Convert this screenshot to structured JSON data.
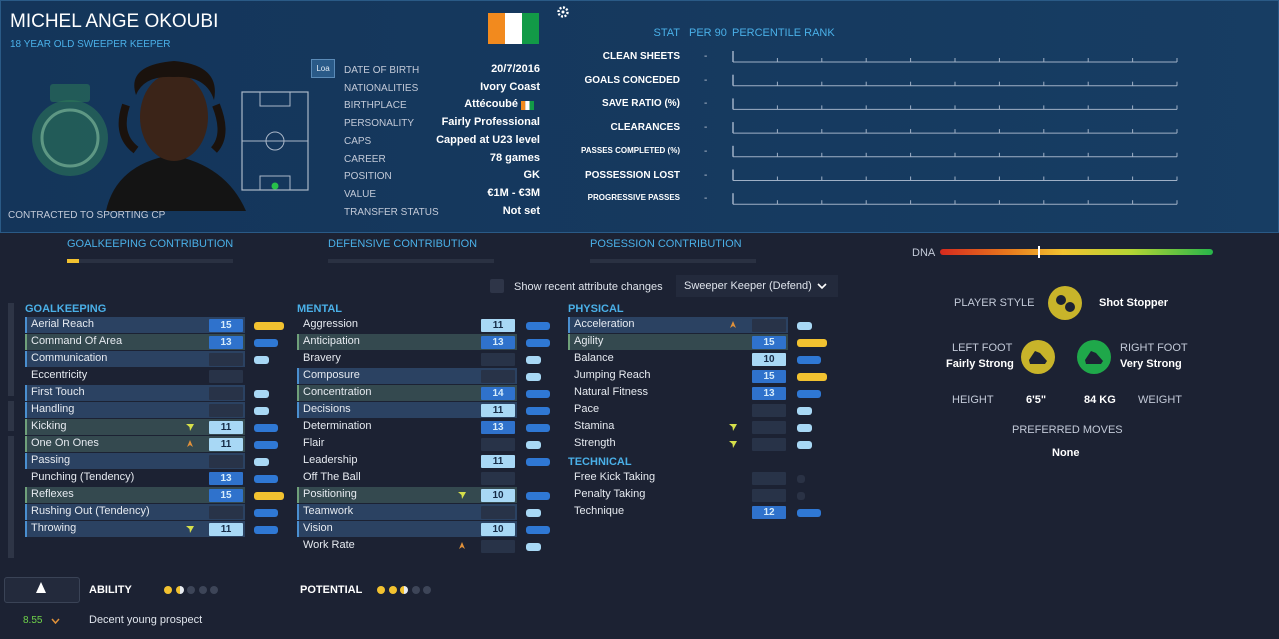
{
  "header": {
    "name": "MICHEL ANGE OKOUBI",
    "subtitle": "18 YEAR OLD SWEEPER KEEPER",
    "contract": "CONTRACTED TO SPORTING CP",
    "badge": "Loa"
  },
  "details": [
    {
      "label": "DATE OF BIRTH",
      "value": "20/7/2016"
    },
    {
      "label": "NATIONALITIES",
      "value": "Ivory Coast"
    },
    {
      "label": "BIRTHPLACE",
      "value": "Attécoubé"
    },
    {
      "label": "PERSONALITY",
      "value": "Fairly Professional"
    },
    {
      "label": "CAPS",
      "value": "Capped at U23 level"
    },
    {
      "label": "CAREER",
      "value": "78  games"
    },
    {
      "label": "POSITION",
      "value": "GK"
    },
    {
      "label": "VALUE",
      "value": "€1M - €3M"
    },
    {
      "label": "TRANSFER STATUS",
      "value": "Not set"
    }
  ],
  "stats": {
    "headers": [
      "STAT",
      "PER 90",
      "PERCENTILE RANK"
    ],
    "rows": [
      {
        "stat": "CLEAN SHEETS",
        "per90": "-"
      },
      {
        "stat": "GOALS CONCEDED",
        "per90": "-"
      },
      {
        "stat": "SAVE RATIO (%)",
        "per90": "-"
      },
      {
        "stat": "CLEARANCES",
        "per90": "-"
      },
      {
        "stat": "PASSES COMPLETED (%)",
        "per90": "-"
      },
      {
        "stat": "POSSESSION LOST",
        "per90": "-"
      },
      {
        "stat": "PROGRESSIVE PASSES",
        "per90": "-"
      }
    ]
  },
  "tabs": [
    "GOALKEEPING CONTRIBUTION",
    "DEFENSIVE CONTRIBUTION",
    "POSESSION CONTRIBUTION"
  ],
  "dna_label": "DNA",
  "controls": {
    "checkbox": "Show recent attribute changes",
    "role": "Sweeper Keeper (Defend)"
  },
  "attributes": [
    {
      "group": "GOALKEEPING",
      "items": [
        {
          "name": "Aerial Reach",
          "value": 15,
          "bar": "#f2c230",
          "row": "#2b4262"
        },
        {
          "name": "Command Of Area",
          "value": 13,
          "bar": "#2f78d4",
          "row": "#34494f"
        },
        {
          "name": "Communication",
          "value": null,
          "bar": "#a8d8f5",
          "row": "#2b4262"
        },
        {
          "name": "Eccentricity",
          "value": null
        },
        {
          "name": "First Touch",
          "value": null,
          "bar": "#a8d8f5",
          "row": "#2b4262"
        },
        {
          "name": "Handling",
          "value": null,
          "bar": "#a8d8f5",
          "row": "#2b4262"
        },
        {
          "name": "Kicking",
          "value": 11,
          "bar": "#2f78d4",
          "row": "#34494f",
          "arrow": "#d6e04a"
        },
        {
          "name": "One On Ones",
          "value": 11,
          "bar": "#2f78d4",
          "row": "#34494f",
          "arrow": "#e0913a"
        },
        {
          "name": "Passing",
          "value": null,
          "bar": "#a8d8f5",
          "row": "#2b4262"
        },
        {
          "name": "Punching (Tendency)",
          "value": 13,
          "bar": "#2f78d4"
        },
        {
          "name": "Reflexes",
          "value": 15,
          "bar": "#f2c230",
          "row": "#34494f"
        },
        {
          "name": "Rushing Out (Tendency)",
          "value": null,
          "bar": "#2f78d4",
          "row": "#2b4262"
        },
        {
          "name": "Throwing",
          "value": 11,
          "bar": "#2f78d4",
          "row": "#2b4262",
          "arrow": "#d6e04a"
        }
      ]
    },
    {
      "group": "MENTAL",
      "items": [
        {
          "name": "Aggression",
          "value": 11,
          "bar": "#2f78d4"
        },
        {
          "name": "Anticipation",
          "value": 13,
          "bar": "#2f78d4",
          "row": "#34494f"
        },
        {
          "name": "Bravery",
          "value": null,
          "bar": "#a8d8f5"
        },
        {
          "name": "Composure",
          "value": null,
          "bar": "#a8d8f5",
          "row": "#2b4262"
        },
        {
          "name": "Concentration",
          "value": 14,
          "bar": "#2f78d4",
          "row": "#34494f"
        },
        {
          "name": "Decisions",
          "value": 11,
          "bar": "#2f78d4",
          "row": "#2b4262"
        },
        {
          "name": "Determination",
          "value": 13,
          "bar": "#2f78d4"
        },
        {
          "name": "Flair",
          "value": null,
          "bar": "#a8d8f5"
        },
        {
          "name": "Leadership",
          "value": 11,
          "bar": "#2f78d4"
        },
        {
          "name": "Off The Ball",
          "value": null
        },
        {
          "name": "Positioning",
          "value": 10,
          "bar": "#2f78d4",
          "row": "#34494f",
          "arrow": "#d6e04a"
        },
        {
          "name": "Teamwork",
          "value": null,
          "bar": "#a8d8f5",
          "row": "#2b4262"
        },
        {
          "name": "Vision",
          "value": 10,
          "bar": "#2f78d4",
          "row": "#2b4262"
        },
        {
          "name": "Work Rate",
          "value": null,
          "bar": "#a8d8f5",
          "arrow": "#e0913a"
        }
      ]
    },
    {
      "group": "PHYSICAL",
      "items": [
        {
          "name": "Acceleration",
          "value": null,
          "bar": "#a8d8f5",
          "row": "#2b4262",
          "arrow": "#e0913a"
        },
        {
          "name": "Agility",
          "value": 15,
          "bar": "#f2c230",
          "row": "#34494f"
        },
        {
          "name": "Balance",
          "value": 10,
          "bar": "#2f78d4"
        },
        {
          "name": "Jumping Reach",
          "value": 15,
          "bar": "#f2c230"
        },
        {
          "name": "Natural Fitness",
          "value": 13,
          "bar": "#2f78d4"
        },
        {
          "name": "Pace",
          "value": null,
          "bar": "#a8d8f5"
        },
        {
          "name": "Stamina",
          "value": null,
          "bar": "#a8d8f5",
          "arrow": "#d6e04a"
        },
        {
          "name": "Strength",
          "value": null,
          "bar": "#a8d8f5",
          "arrow": "#d6e04a"
        }
      ]
    },
    {
      "group": "TECHNICAL",
      "items": [
        {
          "name": "Free Kick Taking",
          "value": null,
          "bar": "#2a3245"
        },
        {
          "name": "Penalty Taking",
          "value": null,
          "bar": "#2a3245"
        },
        {
          "name": "Technique",
          "value": 12,
          "bar": "#2f78d4"
        }
      ]
    }
  ],
  "profile": {
    "player_style_label": "PLAYER STYLE",
    "player_style": "Shot Stopper",
    "left_foot_label": "LEFT FOOT",
    "left_foot": "Fairly Strong",
    "right_foot_label": "RIGHT FOOT",
    "right_foot": "Very Strong",
    "height_label": "HEIGHT",
    "height": "6'5\"",
    "weight": "84 KG",
    "weight_label": "WEIGHT",
    "moves_label": "PREFERRED MOVES",
    "moves": "None"
  },
  "summary": {
    "rating": 8.55,
    "description": "Decent young prospect",
    "ability_label": "ABILITY",
    "ability": 1.5,
    "potential_label": "POTENTIAL",
    "potential": 2.5
  }
}
